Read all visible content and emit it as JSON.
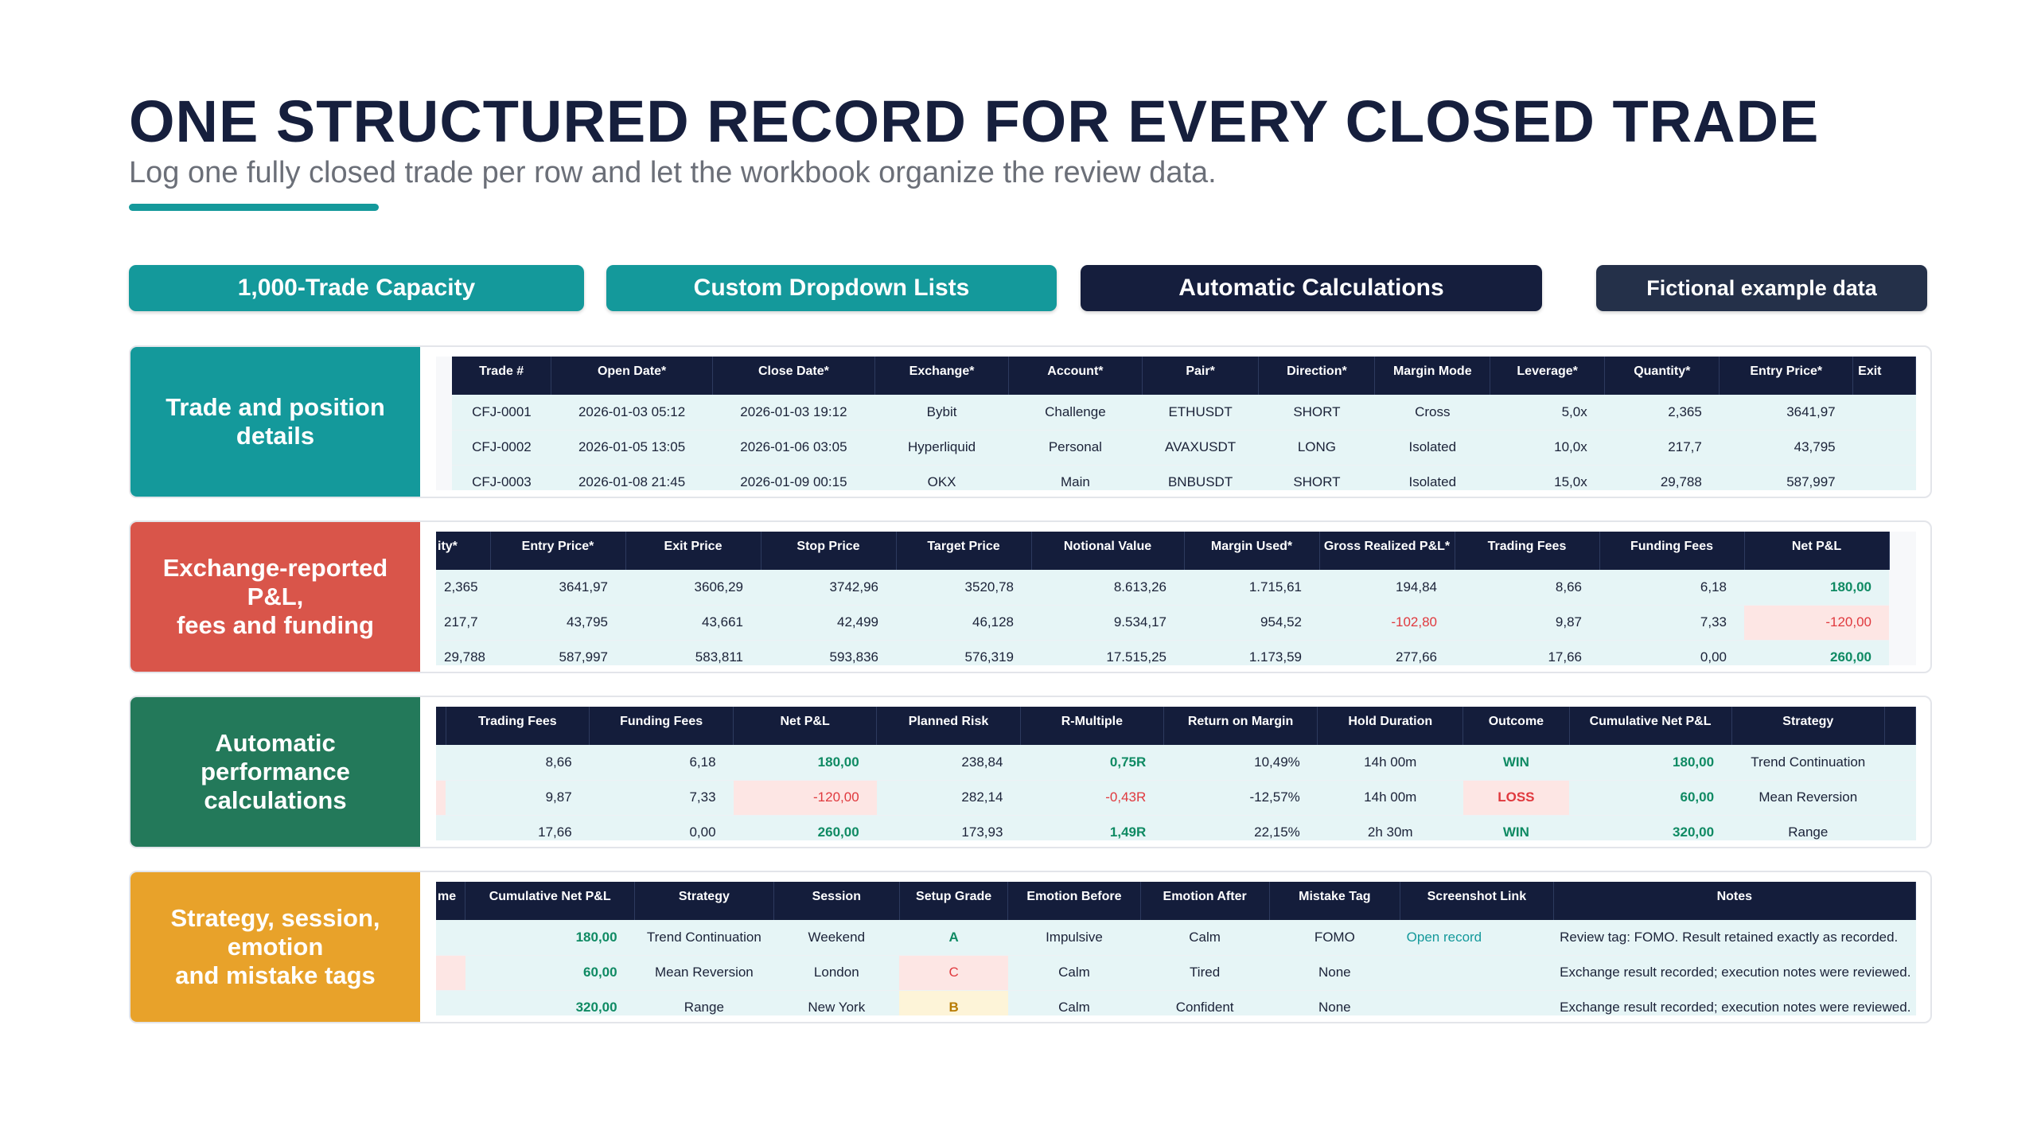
{
  "header": {
    "title": "ONE STRUCTURED RECORD FOR EVERY CLOSED TRADE",
    "subtitle": "Log one fully closed trade per row and let the workbook organize the review data."
  },
  "features": [
    {
      "label": "1,000-Trade Capacity"
    },
    {
      "label": "Custom Dropdown Lists"
    },
    {
      "label": "Automatic Calculations"
    },
    {
      "label": "Fictional example data"
    }
  ],
  "colors": {
    "teal": "#14999b",
    "navy": "#151e3d",
    "red": "#d9554a",
    "green": "#23795a",
    "amber": "#e8a22a"
  },
  "sections": [
    {
      "label": "Trade and position\ndetails",
      "columns": [
        "Trade #",
        "Open Date*",
        "Close Date*",
        "Exchange*",
        "Account*",
        "Pair*",
        "Direction*",
        "Margin Mode",
        "Leverage*",
        "Quantity*",
        "Entry Price*",
        "Exit"
      ],
      "rows": [
        [
          "CFJ-0001",
          "2026-01-03 05:12",
          "2026-01-03 19:12",
          "Bybit",
          "Challenge",
          "ETHUSDT",
          "SHORT",
          "Cross",
          "5,0x",
          "2,365",
          "3641,97",
          ""
        ],
        [
          "CFJ-0002",
          "2026-01-05 13:05",
          "2026-01-06 03:05",
          "Hyperliquid",
          "Personal",
          "AVAXUSDT",
          "LONG",
          "Isolated",
          "10,0x",
          "217,7",
          "43,795",
          ""
        ],
        [
          "CFJ-0003",
          "2026-01-08 21:45",
          "2026-01-09 00:15",
          "OKX",
          "Main",
          "BNBUSDT",
          "SHORT",
          "Isolated",
          "15,0x",
          "29,788",
          "587,997",
          ""
        ]
      ]
    },
    {
      "label": "Exchange-reported\nP&L,\nfees and funding",
      "columns": [
        "ity*",
        "Entry Price*",
        "Exit Price",
        "Stop Price",
        "Target Price",
        "Notional Value",
        "Margin Used*",
        "Gross Realized P&L*",
        "Trading Fees",
        "Funding Fees",
        "Net P&L"
      ],
      "rows": [
        [
          "2,365",
          "3641,97",
          "3606,29",
          "3742,96",
          "3520,78",
          "8.613,26",
          "1.715,61",
          "194,84",
          "8,66",
          "6,18",
          "180,00"
        ],
        [
          "217,7",
          "43,795",
          "43,661",
          "42,499",
          "46,128",
          "9.534,17",
          "954,52",
          "-102,80",
          "9,87",
          "7,33",
          "-120,00"
        ],
        [
          "29,788",
          "587,997",
          "583,811",
          "593,836",
          "576,319",
          "17.515,25",
          "1.173,59",
          "277,66",
          "17,66",
          "0,00",
          "260,00"
        ]
      ]
    },
    {
      "label": "Automatic\nperformance\ncalculations",
      "columns": [
        "",
        "Trading Fees",
        "Funding Fees",
        "Net P&L",
        "Planned Risk",
        "R-Multiple",
        "Return on Margin",
        "Hold Duration",
        "Outcome",
        "Cumulative Net P&L",
        "Strategy",
        ""
      ],
      "rows": [
        [
          "",
          "8,66",
          "6,18",
          "180,00",
          "238,84",
          "0,75R",
          "10,49%",
          "14h 00m",
          "WIN",
          "180,00",
          "Trend Continuation",
          ""
        ],
        [
          "",
          "9,87",
          "7,33",
          "-120,00",
          "282,14",
          "-0,43R",
          "-12,57%",
          "14h 00m",
          "LOSS",
          "60,00",
          "Mean Reversion",
          ""
        ],
        [
          "",
          "17,66",
          "0,00",
          "260,00",
          "173,93",
          "1,49R",
          "22,15%",
          "2h 30m",
          "WIN",
          "320,00",
          "Range",
          ""
        ]
      ]
    },
    {
      "label": "Strategy, session,\nemotion\nand mistake tags",
      "columns": [
        "me",
        "Cumulative Net P&L",
        "Strategy",
        "Session",
        "Setup Grade",
        "Emotion Before",
        "Emotion After",
        "Mistake Tag",
        "Screenshot Link",
        "Notes"
      ],
      "rows": [
        [
          "",
          "180,00",
          "Trend Continuation",
          "Weekend",
          "A",
          "Impulsive",
          "Calm",
          "FOMO",
          "Open record",
          "Review tag: FOMO. Result retained exactly as recorded."
        ],
        [
          "",
          "60,00",
          "Mean Reversion",
          "London",
          "C",
          "Calm",
          "Tired",
          "None",
          "",
          "Exchange result recorded; execution notes were reviewed."
        ],
        [
          "",
          "320,00",
          "Range",
          "New York",
          "B",
          "Calm",
          "Confident",
          "None",
          "",
          "Exchange result recorded; execution notes were reviewed."
        ]
      ]
    }
  ]
}
